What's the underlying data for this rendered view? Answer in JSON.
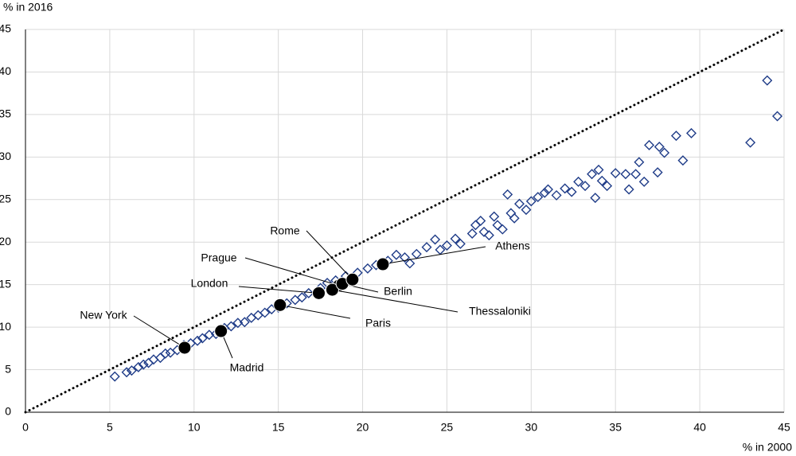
{
  "chart_data": {
    "type": "scatter",
    "y_label": "% in 2016",
    "x_label": "% in 2000",
    "xlim": [
      0,
      45
    ],
    "ylim": [
      0,
      45
    ],
    "xticks": [
      0,
      5,
      10,
      15,
      20,
      25,
      30,
      35,
      40,
      45
    ],
    "yticks": [
      0,
      5,
      10,
      15,
      20,
      25,
      30,
      35,
      40,
      45
    ],
    "grid": true,
    "identity_line": true,
    "series": [
      {
        "marker": "diamond",
        "color": "#1f3c88",
        "x": [
          5.3,
          6,
          6.3,
          6.7,
          7,
          7.3,
          7.6,
          8,
          8.3,
          8.6,
          9,
          9.4,
          9.8,
          10.2,
          10.5,
          10.9,
          11.3,
          11.8,
          12.2,
          12.6,
          13,
          13.4,
          13.8,
          14.2,
          14.6,
          15,
          15.5,
          16,
          16.4,
          16.8,
          17.5,
          17.9,
          18.4,
          19,
          19.7,
          20.3,
          20.8,
          21.5,
          22,
          22.5,
          22.8,
          23.2,
          23.8,
          24.3,
          24.6,
          25,
          25.5,
          25.8,
          26.5,
          26.7,
          27,
          27.2,
          27.5,
          27.8,
          28,
          28.3,
          28.6,
          28.8,
          29,
          29.3,
          29.7,
          30,
          30.4,
          30.8,
          31,
          31.5,
          32,
          32.4,
          32.8,
          33.2,
          33.6,
          33.8,
          34,
          34.2,
          34.5,
          35,
          35.8,
          35.6,
          36.2,
          36.4,
          36.7,
          37,
          37.5,
          37.6,
          37.9,
          38.6,
          39,
          39.5,
          43,
          44,
          44.6
        ],
        "values": [
          4.2,
          4.7,
          4.9,
          5.3,
          5.6,
          5.8,
          6.2,
          6.4,
          6.9,
          7,
          7.3,
          7.9,
          8.1,
          8.4,
          8.7,
          9.1,
          9.2,
          9.9,
          10.1,
          10.5,
          10.6,
          11.1,
          11.4,
          11.7,
          12.1,
          12.3,
          12.8,
          13.2,
          13.5,
          14,
          14.6,
          15.2,
          15.5,
          16,
          16.4,
          16.9,
          17.3,
          17.8,
          18.5,
          18.2,
          17.5,
          18.6,
          19.4,
          20.3,
          19.1,
          19.6,
          20.4,
          19.8,
          21,
          22,
          22.5,
          21.2,
          20.8,
          23,
          22,
          21.5,
          25.6,
          23.4,
          22.8,
          24.5,
          23.8,
          24.8,
          25.3,
          25.8,
          26.2,
          25.5,
          26.3,
          25.9,
          27.1,
          26.6,
          28,
          25.2,
          28.5,
          27.2,
          26.6,
          28.1,
          26.2,
          28,
          28,
          29.4,
          27.1,
          31.4,
          28.2,
          31.2,
          30.5,
          32.5,
          29.6,
          32.8,
          31.7,
          39,
          34.8
        ]
      },
      {
        "marker": "circle",
        "color": "#000000",
        "labels": [
          "New York",
          "Madrid",
          "London",
          "Paris",
          "Prague",
          "Thessaloniki",
          "Berlin",
          "Rome",
          "Athens"
        ],
        "x": [
          9.44,
          11.6,
          17.4,
          15.1,
          18.6,
          18.2,
          18.8,
          19.4,
          21.2
        ],
        "values": [
          7.58,
          9.54,
          14.0,
          12.6,
          14.9,
          14.4,
          15.1,
          15.6,
          17.4
        ]
      }
    ]
  }
}
